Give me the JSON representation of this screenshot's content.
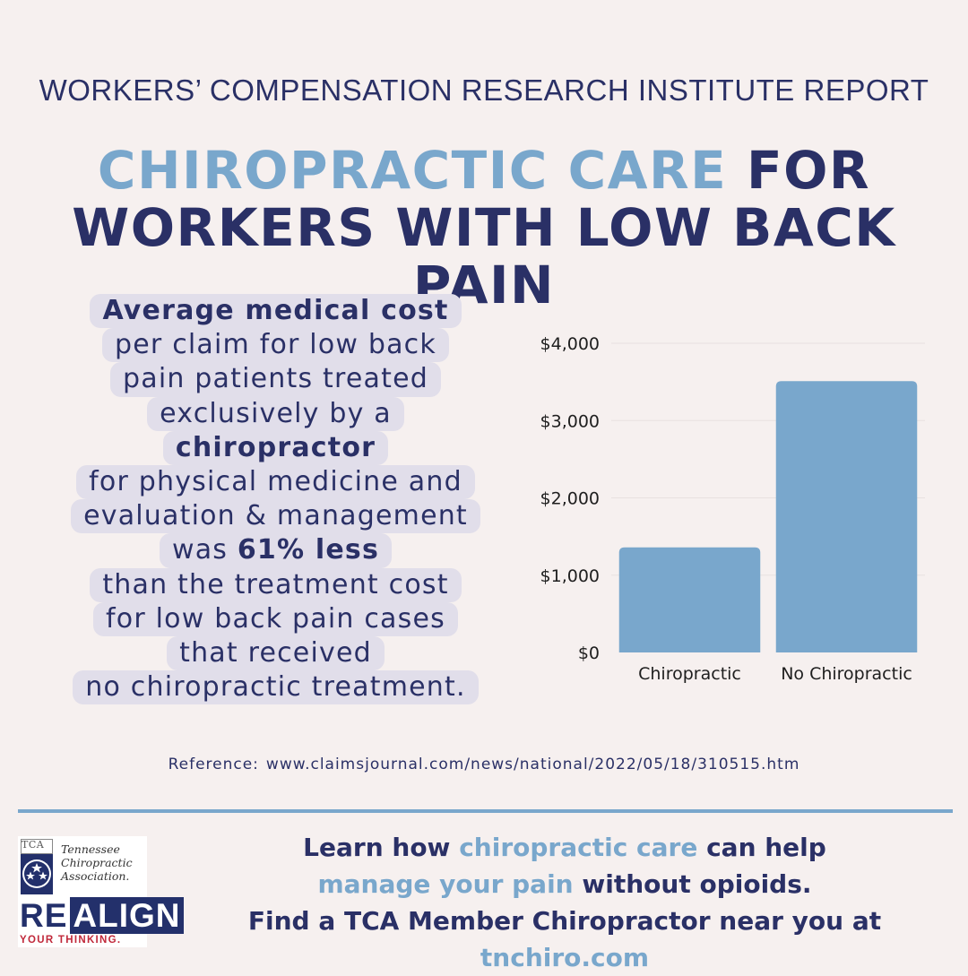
{
  "header": {
    "subtitle": "WORKERS’ COMPENSATION RESEARCH INSTITUTE REPORT",
    "headline_accent": "CHIROPRACTIC CARE",
    "headline_rest_1": " FOR",
    "headline_line2": "WORKERS WITH LOW BACK PAIN"
  },
  "blurb": {
    "line1_bold": "Average medical cost",
    "line2": "per claim for low back",
    "line3": "pain patients treated",
    "line4": "exclusively by a",
    "line5_bold": "chiropractor",
    "line6": "for physical medicine and",
    "line7": "evaluation & management",
    "line8_pre": "was ",
    "line8_bold": "61% less",
    "line9": "than the treatment cost",
    "line10": "for low back pain cases",
    "line11": "that received",
    "line12": "no chiropractic treatment."
  },
  "chart_data": {
    "type": "bar",
    "categories": [
      "Chiropractic",
      "No Chiropractic"
    ],
    "values": [
      1360,
      3510
    ],
    "ylim": [
      0,
      4000
    ],
    "yticks": [
      0,
      1000,
      2000,
      3000,
      4000
    ],
    "ytick_labels": [
      "$0",
      "$1,000",
      "$2,000",
      "$3,000",
      "$4,000"
    ],
    "grid": true,
    "bar_color": "#79a7cc",
    "title": "",
    "xlabel": "",
    "ylabel": ""
  },
  "reference": {
    "label": "Reference:",
    "url": "www.claimsjournal.com/news/national/2022/05/18/310515.htm"
  },
  "logo": {
    "abbr": "TCA",
    "name_line1": "Tennessee",
    "name_line2": "Chiropractic",
    "name_line3": "Association.",
    "wordmark_re": "RE",
    "wordmark_align": "ALIGN",
    "tagline": "YOUR THINKING."
  },
  "cta": {
    "l1_a": "Learn how ",
    "l1_b": "chiropractic care",
    "l1_c": " can help",
    "l2_a": "manage your pain",
    "l2_b": " without opioids.",
    "l3_a": "Find a TCA Member Chiropractor near you at ",
    "l3_b": "tnchiro.com"
  },
  "colors": {
    "background": "#f6f0ef",
    "navy": "#2a3066",
    "accent_blue": "#79a7cc",
    "highlight": "#e1deea",
    "logo_red": "#c0283a"
  }
}
